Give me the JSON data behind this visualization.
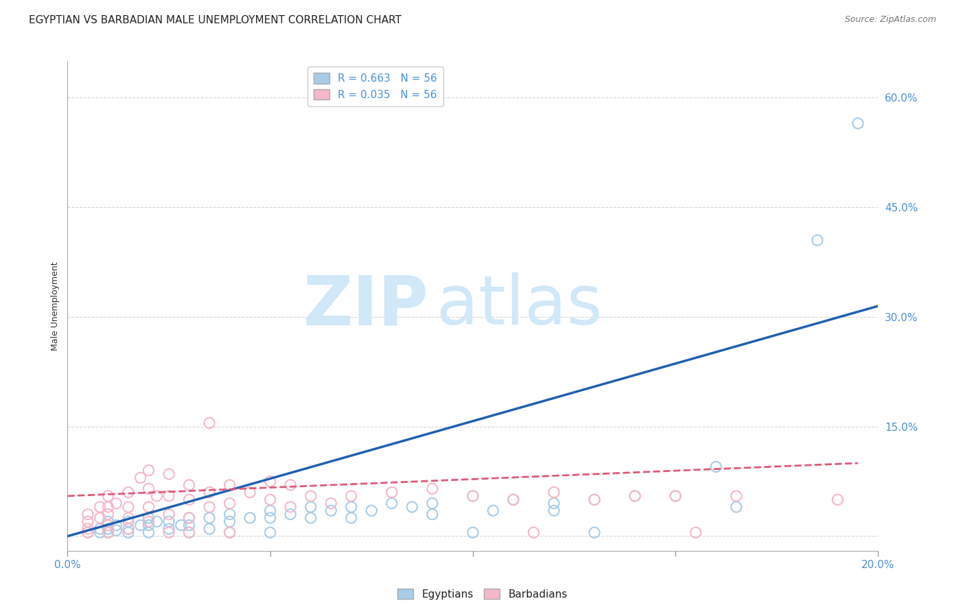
{
  "title": "EGYPTIAN VS BARBADIAN MALE UNEMPLOYMENT CORRELATION CHART",
  "source": "Source: ZipAtlas.com",
  "ylabel": "Male Unemployment",
  "xlim": [
    0.0,
    0.2
  ],
  "ylim": [
    -0.02,
    0.65
  ],
  "xticks": [
    0.0,
    0.05,
    0.1,
    0.15,
    0.2
  ],
  "xticklabels": [
    "0.0%",
    "",
    "",
    "",
    "20.0%"
  ],
  "yticks": [
    0.0,
    0.15,
    0.3,
    0.45,
    0.6
  ],
  "yticklabels": [
    "",
    "15.0%",
    "30.0%",
    "45.0%",
    "60.0%"
  ],
  "R_egyptian": 0.663,
  "R_barbadian": 0.035,
  "N": 56,
  "egyptian_color": "#a8cce8",
  "barbadian_color": "#f4b8c8",
  "egyptian_line_color": "#2060b0",
  "barbadian_line_color": "#e05878",
  "watermark_zip": "ZIP",
  "watermark_atlas": "atlas",
  "watermark_color": "#d0e8f8",
  "legend_label_egyptian": "Egyptians",
  "legend_label_barbadian": "Barbadians",
  "egyptian_scatter": [
    [
      0.005,
      0.005
    ],
    [
      0.008,
      0.01
    ],
    [
      0.008,
      0.005
    ],
    [
      0.01,
      0.02
    ],
    [
      0.01,
      0.01
    ],
    [
      0.01,
      0.005
    ],
    [
      0.012,
      0.015
    ],
    [
      0.012,
      0.008
    ],
    [
      0.015,
      0.02
    ],
    [
      0.015,
      0.01
    ],
    [
      0.015,
      0.005
    ],
    [
      0.018,
      0.015
    ],
    [
      0.02,
      0.025
    ],
    [
      0.02,
      0.015
    ],
    [
      0.02,
      0.005
    ],
    [
      0.022,
      0.02
    ],
    [
      0.025,
      0.02
    ],
    [
      0.025,
      0.01
    ],
    [
      0.028,
      0.015
    ],
    [
      0.03,
      0.025
    ],
    [
      0.03,
      0.015
    ],
    [
      0.03,
      0.005
    ],
    [
      0.035,
      0.025
    ],
    [
      0.035,
      0.01
    ],
    [
      0.04,
      0.03
    ],
    [
      0.04,
      0.02
    ],
    [
      0.04,
      0.005
    ],
    [
      0.045,
      0.025
    ],
    [
      0.05,
      0.035
    ],
    [
      0.05,
      0.025
    ],
    [
      0.05,
      0.005
    ],
    [
      0.055,
      0.03
    ],
    [
      0.06,
      0.04
    ],
    [
      0.06,
      0.025
    ],
    [
      0.065,
      0.035
    ],
    [
      0.07,
      0.04
    ],
    [
      0.07,
      0.025
    ],
    [
      0.075,
      0.035
    ],
    [
      0.08,
      0.045
    ],
    [
      0.085,
      0.04
    ],
    [
      0.09,
      0.045
    ],
    [
      0.09,
      0.03
    ],
    [
      0.1,
      0.055
    ],
    [
      0.1,
      0.005
    ],
    [
      0.105,
      0.035
    ],
    [
      0.11,
      0.05
    ],
    [
      0.12,
      0.045
    ],
    [
      0.12,
      0.035
    ],
    [
      0.13,
      0.05
    ],
    [
      0.13,
      0.005
    ],
    [
      0.14,
      0.055
    ],
    [
      0.15,
      0.055
    ],
    [
      0.16,
      0.095
    ],
    [
      0.165,
      0.04
    ],
    [
      0.185,
      0.405
    ],
    [
      0.195,
      0.565
    ]
  ],
  "barbadian_scatter": [
    [
      0.005,
      0.03
    ],
    [
      0.005,
      0.02
    ],
    [
      0.005,
      0.01
    ],
    [
      0.005,
      0.005
    ],
    [
      0.008,
      0.04
    ],
    [
      0.008,
      0.025
    ],
    [
      0.01,
      0.055
    ],
    [
      0.01,
      0.04
    ],
    [
      0.01,
      0.03
    ],
    [
      0.01,
      0.015
    ],
    [
      0.01,
      0.005
    ],
    [
      0.012,
      0.045
    ],
    [
      0.015,
      0.06
    ],
    [
      0.015,
      0.04
    ],
    [
      0.015,
      0.025
    ],
    [
      0.015,
      0.01
    ],
    [
      0.018,
      0.08
    ],
    [
      0.02,
      0.09
    ],
    [
      0.02,
      0.065
    ],
    [
      0.02,
      0.04
    ],
    [
      0.02,
      0.02
    ],
    [
      0.022,
      0.055
    ],
    [
      0.025,
      0.085
    ],
    [
      0.025,
      0.055
    ],
    [
      0.025,
      0.03
    ],
    [
      0.025,
      0.005
    ],
    [
      0.03,
      0.07
    ],
    [
      0.03,
      0.05
    ],
    [
      0.03,
      0.025
    ],
    [
      0.03,
      0.005
    ],
    [
      0.035,
      0.06
    ],
    [
      0.035,
      0.04
    ],
    [
      0.035,
      0.155
    ],
    [
      0.04,
      0.07
    ],
    [
      0.04,
      0.045
    ],
    [
      0.04,
      0.005
    ],
    [
      0.045,
      0.06
    ],
    [
      0.05,
      0.075
    ],
    [
      0.05,
      0.05
    ],
    [
      0.055,
      0.07
    ],
    [
      0.055,
      0.04
    ],
    [
      0.06,
      0.055
    ],
    [
      0.065,
      0.045
    ],
    [
      0.07,
      0.055
    ],
    [
      0.08,
      0.06
    ],
    [
      0.09,
      0.065
    ],
    [
      0.1,
      0.055
    ],
    [
      0.11,
      0.05
    ],
    [
      0.115,
      0.005
    ],
    [
      0.12,
      0.06
    ],
    [
      0.13,
      0.05
    ],
    [
      0.14,
      0.055
    ],
    [
      0.15,
      0.055
    ],
    [
      0.155,
      0.005
    ],
    [
      0.165,
      0.055
    ],
    [
      0.19,
      0.05
    ]
  ],
  "egyptian_line_x": [
    0.0,
    0.2
  ],
  "egyptian_line_y": [
    0.0,
    0.315
  ],
  "barbadian_line_x": [
    0.0,
    0.195
  ],
  "barbadian_line_y": [
    0.055,
    0.1
  ],
  "background_color": "#ffffff",
  "grid_color": "#cccccc",
  "axis_tick_color": "#4a90d9",
  "title_fontsize": 11,
  "axis_label_fontsize": 9,
  "dot_size": 120,
  "dot_linewidth": 1.5
}
